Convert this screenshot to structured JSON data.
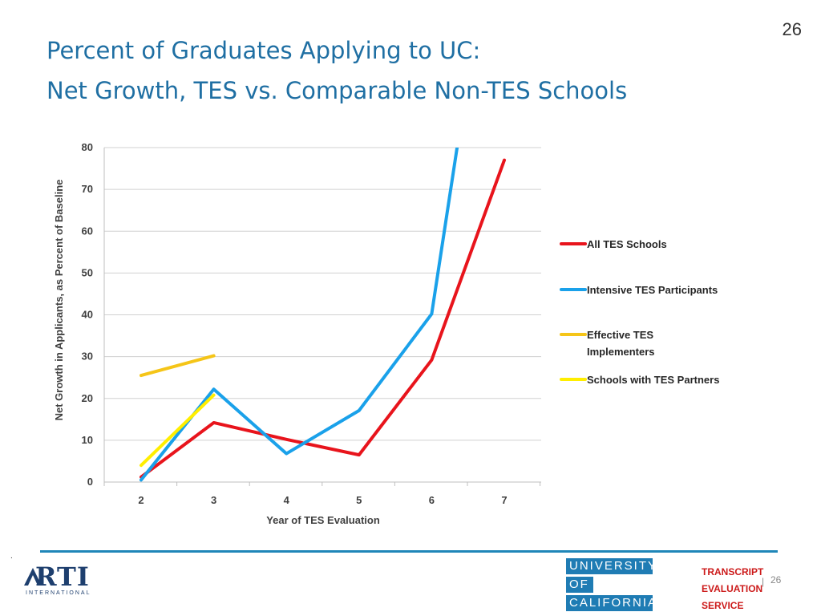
{
  "slide": {
    "number": "26",
    "title_line1": "Percent of Graduates Applying to UC:",
    "title_line2": "Net Growth, TES vs. Comparable Non-TES Schools",
    "footer_mark": ".",
    "footer_page": "26"
  },
  "logos": {
    "rti": {
      "text": "RTI",
      "subtext": "INTERNATIONAL"
    },
    "uc": {
      "line1": "UNIVERSITY",
      "line2": "OF",
      "line3": "CALIFORNIA"
    },
    "tes": {
      "line1": "TRANSCRIPT",
      "line2": "EVALUATION",
      "line3": "SERVICE"
    }
  },
  "colors": {
    "title": "#1f6fa3",
    "uc_blue": "#1f7cb4",
    "tes_red": "#cc1a1a",
    "rule": "#1f86b8"
  },
  "chart_data": {
    "type": "line",
    "xlabel": "Year of TES Evaluation",
    "ylabel": "Net Growth in Applicants, as Percent of Baseline",
    "x": [
      2,
      3,
      4,
      5,
      6,
      7
    ],
    "ylim": [
      0,
      80
    ],
    "yticks": [
      0,
      10,
      20,
      30,
      40,
      50,
      60,
      70,
      80
    ],
    "grid": true,
    "legend_position": "right",
    "series": [
      {
        "name": "All TES Schools",
        "color": "#e8141c",
        "x": [
          2,
          3,
          4,
          5,
          6,
          7
        ],
        "values": [
          1.2,
          14.2,
          10.2,
          6.5,
          29.2,
          77
        ]
      },
      {
        "name": "Intensive TES Participants",
        "color": "#1aa1ea",
        "x": [
          2,
          3,
          4,
          5,
          6,
          6.35
        ],
        "values": [
          0.5,
          22.2,
          6.8,
          17.1,
          40.2,
          80
        ]
      },
      {
        "name": "Effective TES Implementers",
        "color": "#f5c518",
        "x": [
          2,
          3
        ],
        "values": [
          25.5,
          30.2
        ]
      },
      {
        "name": "Schools with TES Partners",
        "color": "#ffee00",
        "x": [
          2,
          3
        ],
        "values": [
          4,
          20.8
        ]
      }
    ]
  }
}
